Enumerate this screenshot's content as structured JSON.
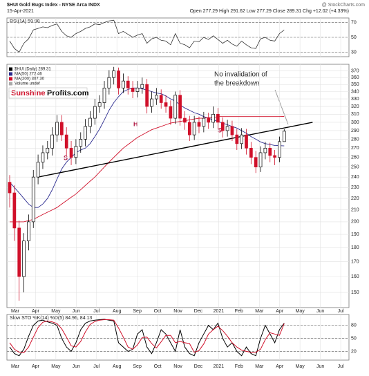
{
  "chart_data": {
    "type": "candlestick",
    "title": "$HUI Gold Bugs Index - NYSE Arca INDX",
    "date": "15-Apr-2021",
    "quote": "Open 277.29 High 291.62 Low 277.29 Close 289.31 Chg +12.02 (+4.33%)",
    "credit": "@ StockCharts.com",
    "months": [
      "Mar",
      "Apr",
      "May",
      "Jun",
      "Jul",
      "Aug",
      "Sep",
      "Oct",
      "Nov",
      "Dec",
      "2021",
      "Feb",
      "Mar",
      "Apr",
      "May",
      "Jun",
      "Jul"
    ],
    "log": true,
    "grid": true,
    "ylim": [
      141,
      380
    ],
    "yticks": [
      150,
      160,
      170,
      180,
      190,
      200,
      210,
      220,
      230,
      240,
      250,
      260,
      270,
      280,
      290,
      300,
      310,
      320,
      330,
      340,
      350,
      360,
      370
    ],
    "price_name": "$HUI (Daily) 289.31",
    "volume_name": "Volume undef",
    "open": [
      235,
      225,
      195,
      160,
      185,
      200,
      240,
      255,
      265,
      270,
      285,
      300,
      285,
      270,
      260,
      272,
      280,
      295,
      305,
      320,
      325,
      345,
      360,
      370,
      345,
      355,
      345,
      340,
      345,
      350,
      320,
      330,
      335,
      325,
      320,
      305,
      335,
      305,
      300,
      285,
      300,
      295,
      305,
      300,
      310,
      300,
      290,
      295,
      285,
      275,
      285,
      270,
      260,
      250,
      265,
      270,
      262,
      260,
      277.29
    ],
    "high": [
      242,
      232,
      201,
      191,
      206,
      247,
      263,
      273,
      278,
      294,
      309,
      309,
      294,
      278,
      280,
      288,
      304,
      314,
      330,
      335,
      355,
      371,
      376,
      375,
      366,
      362,
      355,
      355,
      360,
      358,
      340,
      345,
      343,
      335,
      328,
      340,
      342,
      314,
      308,
      308,
      307,
      313,
      312,
      320,
      318,
      306,
      303,
      302,
      292,
      293,
      292,
      277,
      267,
      272,
      277,
      276,
      268,
      283,
      291.62
    ],
    "low": [
      212,
      185,
      145,
      150,
      178,
      195,
      233,
      248,
      258,
      262,
      277,
      278,
      262,
      252,
      253,
      265,
      272,
      287,
      297,
      312,
      317,
      336,
      350,
      336,
      338,
      336,
      331,
      332,
      337,
      311,
      312,
      322,
      317,
      312,
      297,
      298,
      296,
      291,
      278,
      279,
      287,
      288,
      292,
      293,
      292,
      282,
      283,
      278,
      268,
      269,
      263,
      253,
      244,
      245,
      258,
      255,
      252,
      255,
      277.29
    ],
    "close": [
      225,
      195,
      160,
      185,
      200,
      240,
      255,
      265,
      270,
      285,
      300,
      285,
      270,
      260,
      272,
      280,
      295,
      305,
      320,
      325,
      345,
      360,
      370,
      345,
      355,
      345,
      340,
      345,
      350,
      320,
      330,
      335,
      325,
      320,
      305,
      335,
      305,
      300,
      285,
      300,
      295,
      305,
      300,
      310,
      300,
      290,
      295,
      285,
      275,
      285,
      270,
      260,
      250,
      265,
      270,
      262,
      260,
      277.29,
      289.31
    ],
    "up_color": "#000000",
    "down_color": "#d0102a",
    "series": [
      {
        "name": "MA(50) 272.46",
        "color": "#2b2b8f",
        "values": [
          235,
          230,
          225,
          220,
          215,
          212,
          212,
          215,
          220,
          228,
          238,
          248,
          255,
          260,
          265,
          268,
          270,
          275,
          283,
          292,
          303,
          315,
          325,
          333,
          340,
          343,
          345,
          345,
          344,
          342,
          340,
          338,
          337,
          334,
          330,
          327,
          322,
          318,
          315,
          312,
          310,
          307,
          305,
          303,
          301,
          299,
          297,
          295,
          293,
          290,
          287,
          283,
          280,
          277,
          275,
          274,
          273,
          272.8,
          272.46
        ]
      },
      {
        "name": "MA(200) 307.30",
        "color": "#d0102a",
        "values": [
          200,
          200,
          200,
          200,
          201,
          202,
          204,
          206,
          208,
          210,
          212,
          215,
          218,
          221,
          224,
          228,
          232,
          236,
          240,
          245,
          250,
          255,
          260,
          265,
          270,
          274,
          278,
          282,
          285,
          288,
          291,
          293,
          295,
          297,
          299,
          300,
          301,
          302,
          303,
          304,
          305,
          305,
          306,
          306,
          307,
          307,
          307,
          307,
          307,
          307,
          307,
          307,
          307,
          307,
          307,
          307,
          307,
          307,
          307.3
        ]
      }
    ],
    "trendline": {
      "x": [
        6,
        64
      ],
      "values": [
        240,
        300
      ]
    },
    "annotation": [
      "No invalidation of",
      "the breakdown"
    ],
    "pattern_labels": [
      "S",
      "H",
      "S"
    ],
    "logo": [
      "Sunshine",
      "Profits.com"
    ],
    "rsi": {
      "name": "RSI(14) 59.98",
      "color": "#333333",
      "ylim": [
        24,
        76
      ],
      "yticks": [
        30,
        50,
        70
      ],
      "values": [
        45,
        35,
        30,
        42,
        48,
        60,
        62,
        64,
        63,
        66,
        68,
        58,
        52,
        50,
        55,
        58,
        62,
        64,
        68,
        67,
        70,
        72,
        73,
        55,
        58,
        54,
        50,
        53,
        55,
        42,
        48,
        50,
        46,
        45,
        40,
        55,
        42,
        40,
        36,
        45,
        44,
        50,
        47,
        52,
        47,
        42,
        46,
        41,
        38,
        45,
        40,
        36,
        35,
        48,
        50,
        46,
        45,
        55,
        59.98
      ]
    },
    "sto": {
      "name": "Slow STO %K(14) %D(5) 84.96, 84.13",
      "ylim": [
        0,
        105
      ],
      "yticks": [
        20,
        50,
        80
      ],
      "series": [
        {
          "color": "#000000",
          "values": [
            30,
            15,
            10,
            25,
            55,
            80,
            90,
            92,
            88,
            85,
            80,
            50,
            30,
            20,
            40,
            70,
            85,
            90,
            92,
            93,
            94,
            92,
            90,
            40,
            30,
            20,
            25,
            60,
            70,
            30,
            15,
            40,
            70,
            60,
            40,
            20,
            70,
            30,
            15,
            10,
            40,
            60,
            80,
            70,
            85,
            50,
            30,
            40,
            20,
            10,
            30,
            15,
            10,
            50,
            80,
            60,
            40,
            70,
            84.96
          ]
        },
        {
          "color": "#d0102a",
          "values": [
            40,
            25,
            18,
            17,
            30,
            53,
            75,
            87,
            90,
            88,
            84,
            72,
            53,
            33,
            30,
            43,
            65,
            82,
            89,
            92,
            93,
            93,
            92,
            74,
            53,
            30,
            25,
            35,
            52,
            53,
            38,
            28,
            42,
            57,
            57,
            40,
            43,
            40,
            38,
            18,
            22,
            37,
            60,
            70,
            78,
            68,
            55,
            40,
            30,
            23,
            20,
            18,
            18,
            25,
            47,
            63,
            60,
            57,
            84.13
          ]
        }
      ]
    }
  }
}
